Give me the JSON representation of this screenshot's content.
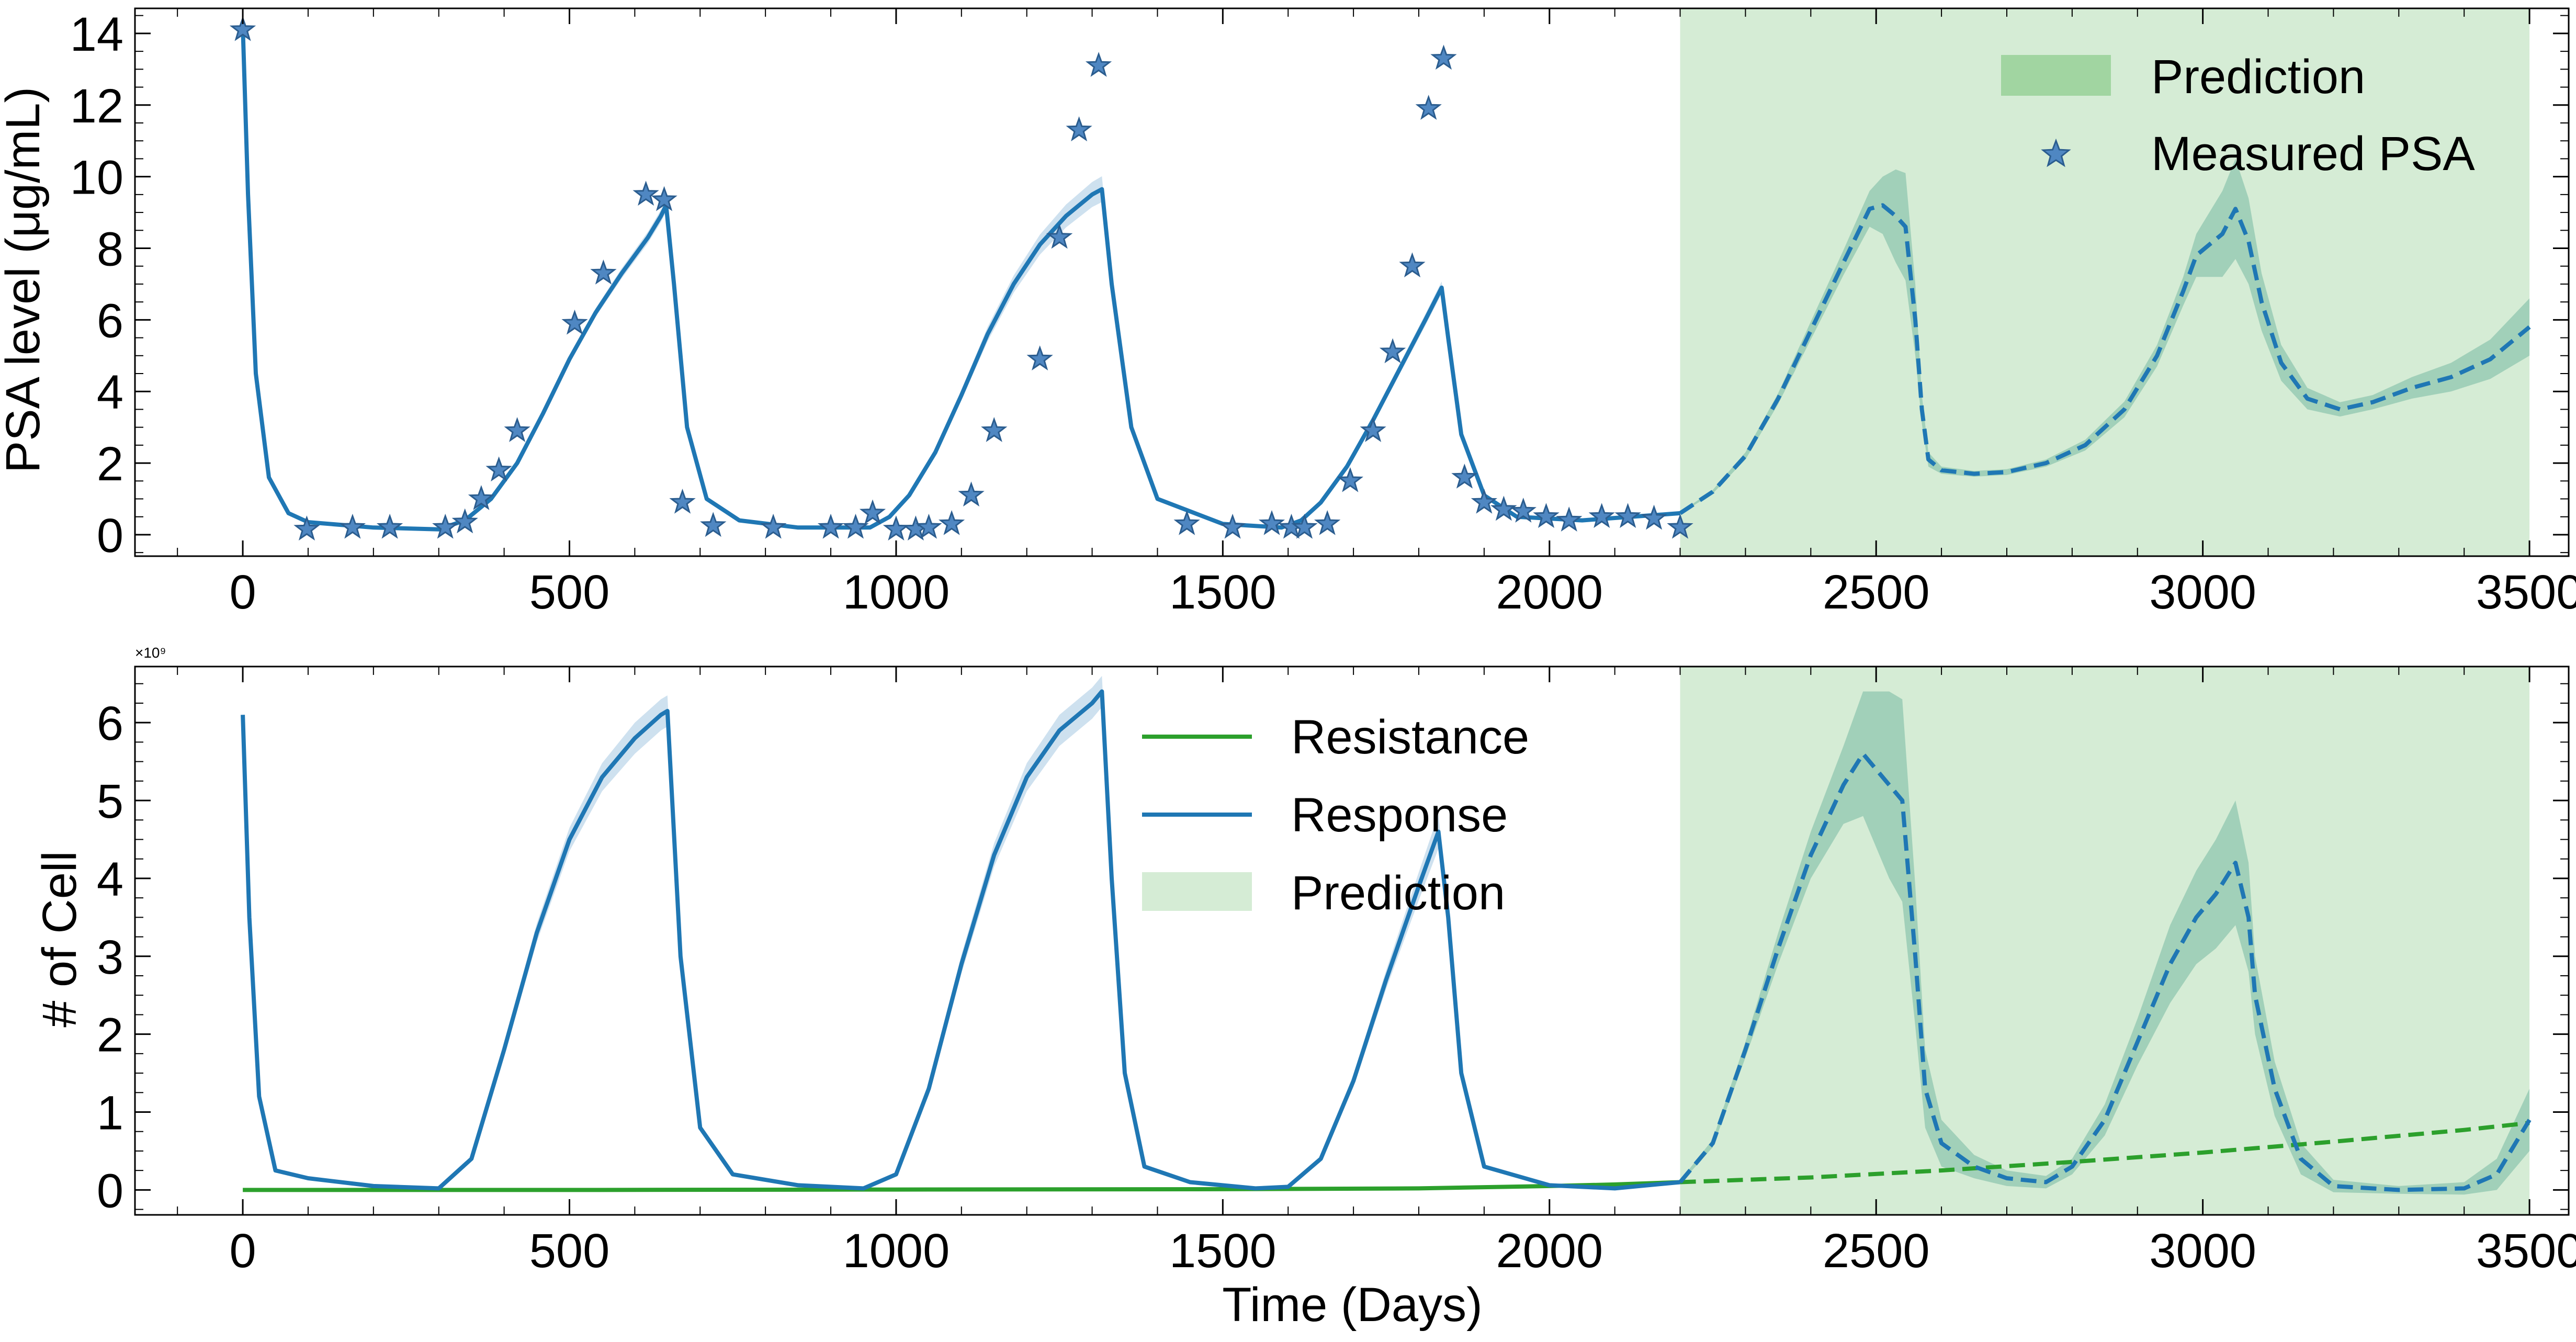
{
  "chart_data": [
    {
      "type": "line",
      "ylabel": "PSA level (μg/mL)",
      "xlim": [
        -165,
        3560
      ],
      "ylim": [
        -0.6,
        14.7
      ],
      "xticks": [
        0,
        500,
        1000,
        1500,
        2000,
        2500,
        3000,
        3500
      ],
      "yticks": [
        0,
        2,
        4,
        6,
        8,
        10,
        12,
        14
      ],
      "grid": false,
      "legend": {
        "position": "top-right",
        "entries": [
          "Prediction",
          "Measured PSA"
        ]
      },
      "prediction_window": {
        "x_start": 2200,
        "x_end": 3500,
        "color": "#2ca02c"
      },
      "series": [
        {
          "name": "",
          "style": "solid",
          "color": "#1f77b4",
          "x": [
            0,
            8,
            20,
            40,
            70,
            100,
            200,
            300,
            340,
            380,
            420,
            460,
            500,
            540,
            580,
            620,
            640,
            648,
            660,
            680,
            710,
            760,
            850,
            960,
            990,
            1020,
            1060,
            1100,
            1140,
            1180,
            1220,
            1260,
            1300,
            1315,
            1330,
            1360,
            1400,
            1500,
            1590,
            1620,
            1650,
            1690,
            1730,
            1770,
            1810,
            1835,
            1845,
            1865,
            1900,
            1950,
            2050,
            2200
          ],
          "y": [
            14.2,
            9.5,
            4.5,
            1.6,
            0.6,
            0.35,
            0.2,
            0.15,
            0.4,
            1.0,
            2.0,
            3.4,
            4.9,
            6.2,
            7.3,
            8.3,
            8.9,
            9.2,
            7.0,
            3.0,
            1.0,
            0.4,
            0.2,
            0.2,
            0.5,
            1.1,
            2.3,
            3.9,
            5.6,
            7.0,
            8.1,
            8.9,
            9.5,
            9.65,
            7.0,
            3.0,
            1.0,
            0.3,
            0.2,
            0.4,
            0.9,
            1.9,
            3.2,
            4.6,
            6.0,
            6.9,
            5.5,
            2.8,
            1.1,
            0.5,
            0.4,
            0.6
          ],
          "band_width": [
            0,
            0,
            0,
            0,
            0,
            0,
            0,
            0,
            0.02,
            0.04,
            0.06,
            0.08,
            0.1,
            0.12,
            0.14,
            0.16,
            0.17,
            0.18,
            0.1,
            0.05,
            0.02,
            0.01,
            0,
            0,
            0.02,
            0.05,
            0.1,
            0.14,
            0.2,
            0.24,
            0.28,
            0.32,
            0.35,
            0.36,
            0.2,
            0.08,
            0.02,
            0,
            0,
            0.01,
            0.03,
            0.06,
            0.1,
            0.14,
            0.16,
            0.17,
            0.12,
            0.06,
            0.02,
            0.01,
            0.01,
            0.02
          ]
        },
        {
          "name": "",
          "style": "dashed",
          "color": "#1f77b4",
          "x": [
            2200,
            2250,
            2300,
            2350,
            2400,
            2450,
            2490,
            2510,
            2530,
            2545,
            2560,
            2570,
            2580,
            2600,
            2650,
            2700,
            2760,
            2820,
            2880,
            2930,
            2970,
            2990,
            3010,
            3030,
            3050,
            3070,
            3090,
            3120,
            3160,
            3210,
            3260,
            3320,
            3380,
            3440,
            3500
          ],
          "y": [
            0.6,
            1.2,
            2.2,
            3.8,
            5.7,
            7.6,
            9.1,
            9.2,
            8.9,
            8.6,
            6.0,
            3.5,
            2.1,
            1.8,
            1.7,
            1.75,
            2.0,
            2.5,
            3.5,
            5.0,
            6.8,
            7.8,
            8.1,
            8.4,
            9.1,
            8.2,
            6.5,
            4.8,
            3.8,
            3.5,
            3.7,
            4.1,
            4.4,
            4.9,
            5.8
          ],
          "band_width": [
            0.02,
            0.05,
            0.1,
            0.15,
            0.25,
            0.35,
            0.5,
            0.8,
            1.3,
            1.5,
            1.0,
            0.4,
            0.2,
            0.1,
            0.08,
            0.08,
            0.1,
            0.15,
            0.22,
            0.3,
            0.4,
            0.6,
            0.9,
            1.2,
            1.4,
            1.2,
            0.8,
            0.5,
            0.3,
            0.2,
            0.2,
            0.3,
            0.4,
            0.55,
            0.8
          ]
        }
      ],
      "measured_psa": {
        "name": "Measured PSA",
        "x": [
          0,
          98,
          168,
          225,
          310,
          340,
          365,
          392,
          420,
          508,
          552,
          617,
          645,
          673,
          720,
          812,
          900,
          938,
          964,
          1000,
          1030,
          1050,
          1085,
          1115,
          1150,
          1220,
          1250,
          1280,
          1310,
          1445,
          1515,
          1575,
          1605,
          1625,
          1660,
          1695,
          1730,
          1760,
          1790,
          1815,
          1838,
          1870,
          1900,
          1930,
          1960,
          1995,
          2030,
          2080,
          2120,
          2160,
          2200
        ],
        "y": [
          14.1,
          0.15,
          0.2,
          0.2,
          0.2,
          0.35,
          1.0,
          1.8,
          2.9,
          5.9,
          7.3,
          9.5,
          9.35,
          0.9,
          0.25,
          0.2,
          0.2,
          0.2,
          0.6,
          0.15,
          0.15,
          0.2,
          0.3,
          1.1,
          2.9,
          4.9,
          8.3,
          11.3,
          13.1,
          0.3,
          0.2,
          0.3,
          0.2,
          0.2,
          0.3,
          1.5,
          2.9,
          5.1,
          7.5,
          11.9,
          13.3,
          1.6,
          0.9,
          0.7,
          0.65,
          0.5,
          0.4,
          0.5,
          0.5,
          0.45,
          0.2
        ]
      }
    },
    {
      "type": "line",
      "xlabel": "Time (Days)",
      "ylabel": "# of Cell",
      "y_scale_label": "×10⁹",
      "xlim": [
        -165,
        3560
      ],
      "ylim": [
        -0.32,
        6.72
      ],
      "xticks": [
        0,
        500,
        1000,
        1500,
        2000,
        2500,
        3000,
        3500
      ],
      "yticks": [
        0,
        1,
        2,
        3,
        4,
        5,
        6
      ],
      "grid": false,
      "legend": {
        "position": "top-center",
        "entries": [
          "Resistance",
          "Response",
          "Prediction"
        ]
      },
      "prediction_window": {
        "x_start": 2200,
        "x_end": 3500,
        "color": "#2ca02c"
      },
      "series": [
        {
          "name": "Resistance",
          "style": "solid",
          "color": "#2ca02c",
          "x": [
            0,
            500,
            1000,
            1500,
            1800,
            2000,
            2100,
            2200
          ],
          "y": [
            0.0,
            0.0,
            0.005,
            0.01,
            0.02,
            0.05,
            0.07,
            0.1
          ],
          "band_width": [
            0,
            0,
            0,
            0,
            0,
            0,
            0,
            0
          ]
        },
        {
          "name": "Resistance",
          "style": "dashed",
          "color": "#2ca02c",
          "x": [
            2200,
            2400,
            2600,
            2800,
            3000,
            3200,
            3400,
            3500
          ],
          "y": [
            0.1,
            0.16,
            0.25,
            0.36,
            0.48,
            0.62,
            0.77,
            0.86
          ],
          "band_width": [
            0,
            0,
            0,
            0,
            0,
            0,
            0,
            0
          ]
        },
        {
          "name": "Response",
          "style": "solid",
          "color": "#1f77b4",
          "x": [
            0,
            10,
            25,
            50,
            100,
            200,
            300,
            350,
            400,
            450,
            500,
            550,
            600,
            640,
            650,
            670,
            700,
            750,
            850,
            950,
            1000,
            1050,
            1100,
            1150,
            1200,
            1250,
            1300,
            1315,
            1330,
            1350,
            1380,
            1450,
            1550,
            1600,
            1650,
            1700,
            1750,
            1800,
            1830,
            1845,
            1865,
            1900,
            2000,
            2100,
            2200
          ],
          "y": [
            6.1,
            3.5,
            1.2,
            0.25,
            0.15,
            0.05,
            0.02,
            0.4,
            1.8,
            3.3,
            4.5,
            5.3,
            5.8,
            6.1,
            6.15,
            3.0,
            0.8,
            0.2,
            0.06,
            0.02,
            0.2,
            1.3,
            2.9,
            4.3,
            5.3,
            5.9,
            6.25,
            6.4,
            4.0,
            1.5,
            0.3,
            0.1,
            0.02,
            0.04,
            0.4,
            1.4,
            2.7,
            3.9,
            4.6,
            3.5,
            1.5,
            0.3,
            0.06,
            0.02,
            0.1
          ],
          "band_width": [
            0,
            0,
            0,
            0,
            0,
            0,
            0,
            0.03,
            0.08,
            0.12,
            0.15,
            0.18,
            0.2,
            0.2,
            0.2,
            0.1,
            0.04,
            0,
            0,
            0,
            0.02,
            0.08,
            0.12,
            0.15,
            0.18,
            0.2,
            0.2,
            0.2,
            0.12,
            0.06,
            0.02,
            0,
            0,
            0,
            0.03,
            0.08,
            0.12,
            0.18,
            0.22,
            0.15,
            0.08,
            0.02,
            0,
            0,
            0
          ]
        },
        {
          "name": "Response",
          "style": "dashed",
          "color": "#1f77b4",
          "x": [
            2200,
            2250,
            2300,
            2350,
            2400,
            2450,
            2480,
            2500,
            2520,
            2540,
            2560,
            2575,
            2600,
            2650,
            2700,
            2760,
            2800,
            2850,
            2900,
            2950,
            2990,
            3020,
            3050,
            3070,
            3080,
            3110,
            3150,
            3200,
            3300,
            3400,
            3450,
            3500
          ],
          "y": [
            0.1,
            0.6,
            1.8,
            3.1,
            4.3,
            5.2,
            5.6,
            5.4,
            5.2,
            5.0,
            3.0,
            1.3,
            0.6,
            0.3,
            0.15,
            0.1,
            0.3,
            0.9,
            1.9,
            2.9,
            3.5,
            3.8,
            4.2,
            3.5,
            2.5,
            1.3,
            0.4,
            0.05,
            0.0,
            0.02,
            0.2,
            0.9
          ],
          "band_width": [
            0.02,
            0.05,
            0.1,
            0.2,
            0.3,
            0.5,
            0.8,
            1.0,
            1.2,
            1.3,
            0.9,
            0.5,
            0.3,
            0.15,
            0.1,
            0.08,
            0.1,
            0.2,
            0.3,
            0.5,
            0.6,
            0.7,
            0.8,
            0.7,
            0.5,
            0.35,
            0.2,
            0.08,
            0.05,
            0.08,
            0.2,
            0.4
          ]
        }
      ]
    }
  ]
}
